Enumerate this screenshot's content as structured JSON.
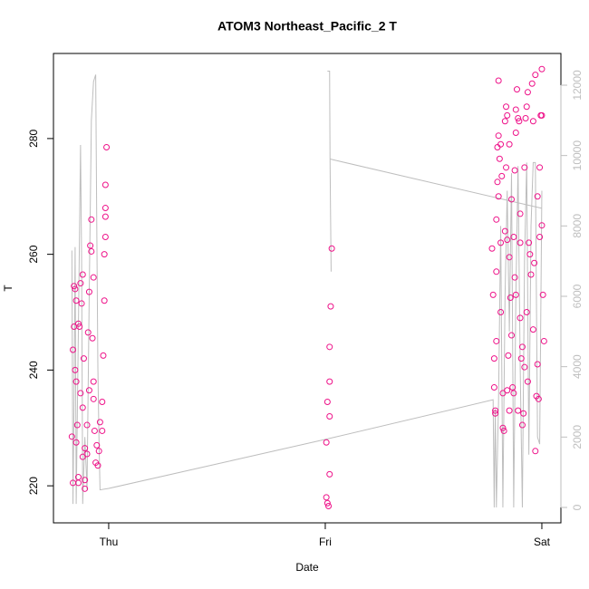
{
  "chart_data": {
    "type": "scatter",
    "title": "ATOM3 Northeast_Pacific_2 T",
    "x_label": "Date",
    "y_label": "T",
    "xlim": [
      -0.255,
      2.088
    ],
    "xticks": [
      {
        "value": 0,
        "label": "Thu"
      },
      {
        "value": 1,
        "label": "Fri"
      },
      {
        "value": 2,
        "label": "Sat"
      }
    ],
    "ylim": [
      213.6,
      294.7
    ],
    "yticks": [
      220,
      240,
      260,
      280
    ],
    "y2lim": [
      -438,
      12901
    ],
    "y2ticks": [
      0,
      2000,
      4000,
      6000,
      8000,
      10000,
      12000
    ],
    "y2_color": "#bebebe",
    "grid": false,
    "series": [
      {
        "type": "scatter",
        "color": "#ee1289",
        "x": [
          -0.17,
          -0.165,
          -0.16,
          -0.16,
          -0.155,
          -0.15,
          -0.15,
          -0.145,
          -0.14,
          -0.14,
          -0.135,
          -0.13,
          -0.13,
          -0.125,
          -0.12,
          -0.12,
          -0.115,
          -0.11,
          -0.11,
          -0.1,
          -0.1,
          -0.095,
          -0.09,
          -0.09,
          -0.085,
          -0.08,
          -0.08,
          -0.075,
          -0.07,
          -0.07,
          -0.065,
          -0.06,
          -0.055,
          -0.05,
          -0.045,
          -0.04,
          -0.03,
          -0.03,
          -0.025,
          -0.02,
          -0.02,
          -0.015,
          -0.015,
          -0.015,
          -0.015,
          -0.01,
          -0.165,
          -0.15,
          -0.11,
          -0.155,
          -0.14,
          -0.12,
          -0.07,
          1.005,
          1.01,
          1.015,
          1.005,
          1.01,
          1.02,
          1.02,
          1.02,
          1.02,
          1.025,
          1.03,
          1.77,
          1.775,
          1.78,
          1.78,
          1.785,
          1.785,
          1.79,
          1.79,
          1.79,
          1.795,
          1.795,
          1.8,
          1.8,
          1.805,
          1.81,
          1.81,
          1.815,
          1.82,
          1.82,
          1.825,
          1.83,
          1.83,
          1.835,
          1.835,
          1.84,
          1.84,
          1.845,
          1.85,
          1.85,
          1.85,
          1.855,
          1.86,
          1.86,
          1.865,
          1.87,
          1.87,
          1.875,
          1.875,
          1.88,
          1.88,
          1.885,
          1.89,
          1.89,
          1.895,
          1.9,
          1.9,
          1.905,
          1.91,
          1.91,
          1.915,
          1.92,
          1.925,
          1.93,
          1.935,
          1.935,
          1.94,
          1.945,
          1.95,
          1.955,
          1.96,
          1.965,
          1.97,
          1.975,
          1.98,
          1.985,
          1.99,
          1.995,
          2.0,
          2.0,
          2.005,
          2.01,
          1.8,
          1.81,
          1.84,
          1.88,
          1.9,
          1.92,
          1.93,
          1.96,
          1.97,
          1.98,
          1.99,
          2.0
        ],
        "values": [
          228.5,
          243.5,
          247.5,
          254.5,
          254,
          252,
          238,
          230.5,
          221.5,
          220.5,
          247.5,
          255,
          236,
          251.5,
          256.5,
          233.5,
          242,
          219.5,
          226.5,
          225.5,
          230.5,
          246.5,
          253.5,
          236.5,
          261.5,
          266,
          260.5,
          245.5,
          238,
          235,
          229.5,
          224,
          227,
          223.5,
          226,
          231,
          234.5,
          229.5,
          242.5,
          252,
          260,
          263,
          266.5,
          268,
          272,
          278.5,
          220.5,
          227.5,
          221,
          240,
          248,
          225,
          256,
          218,
          217,
          216.5,
          227.5,
          234.5,
          232,
          222,
          238,
          244,
          251,
          261,
          261,
          253,
          242,
          237,
          233,
          232.5,
          266,
          257,
          245,
          272.5,
          278.5,
          280.5,
          270,
          276.5,
          262,
          250,
          273.5,
          230,
          236,
          229.5,
          264,
          283,
          285.5,
          275,
          262.5,
          236.5,
          242.5,
          279,
          259.5,
          233,
          252.5,
          269.5,
          246,
          237,
          236,
          263,
          274.5,
          256,
          253,
          281,
          288.5,
          283.5,
          233,
          283,
          267,
          249,
          242,
          244,
          230.5,
          232.5,
          240.5,
          283.5,
          285.5,
          288,
          238,
          262,
          260,
          256.5,
          289.5,
          247,
          258.5,
          291,
          235.5,
          241,
          235,
          263,
          284,
          292,
          265,
          253,
          245,
          290,
          279,
          284,
          285,
          262,
          275,
          250,
          283,
          226,
          270,
          275,
          284
        ]
      },
      {
        "type": "line",
        "axis": "y2",
        "color": "#bebebe",
        "x": [
          -0.17,
          -0.165,
          -0.16,
          -0.155,
          -0.15,
          -0.14,
          -0.13,
          -0.125,
          -0.12,
          -0.11,
          -0.1,
          -0.09,
          -0.08,
          -0.07,
          -0.06,
          -0.055,
          -0.05,
          -0.045,
          -0.04,
          0,
          0.998,
          1.775,
          1.78,
          1.785,
          1.79,
          1.8,
          1.81,
          1.82,
          1.83,
          1.84,
          1.85,
          1.86,
          1.87,
          1.88,
          1.89,
          1.9,
          1.91,
          1.92,
          1.93,
          1.94,
          1.95,
          1.96,
          1.97,
          1.98,
          1.99,
          2.0,
          null,
          1.01,
          1.02,
          1.022,
          2.0,
          null,
          1.022,
          1.027
        ],
        "values": [
          7300,
          100,
          3000,
          7400,
          100,
          5000,
          10300,
          7000,
          100,
          2000,
          500,
          6000,
          11000,
          12100,
          12300,
          8000,
          4000,
          2000,
          500,
          540,
          1930,
          3060,
          0,
          2800,
          0,
          3000,
          8000,
          0,
          6000,
          9000,
          5000,
          9500,
          0,
          6000,
          9700,
          4000,
          0,
          7000,
          9800,
          1500,
          8000,
          9800,
          9800,
          2000,
          1800,
          9000,
          null,
          12400,
          12400,
          9900,
          8500,
          null,
          9900,
          6700
        ]
      }
    ]
  }
}
